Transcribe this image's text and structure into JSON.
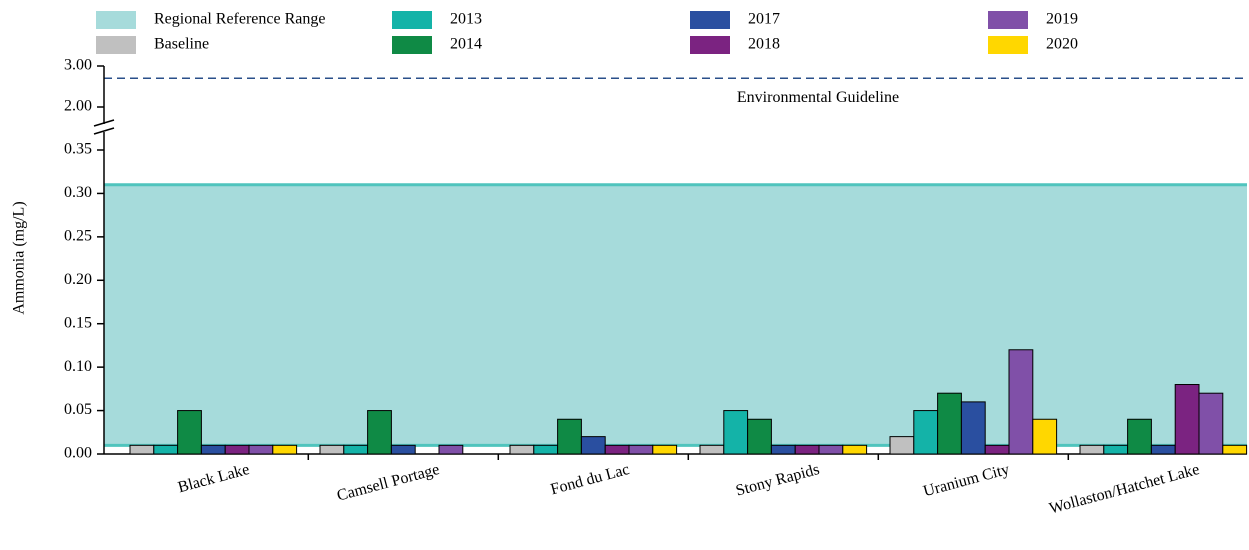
{
  "chart_data": {
    "type": "bar",
    "y_label": "Ammonia (mg/L)",
    "categories": [
      "Black Lake",
      "Camsell Portage",
      "Fond du Lac",
      "Stony Rapids",
      "Uranium City",
      "Wollaston/Hatchet Lake"
    ],
    "series": [
      {
        "name": "Baseline",
        "color": "#c0c0c0",
        "values": [
          0.01,
          0.01,
          0.01,
          0.01,
          0.02,
          0.01
        ]
      },
      {
        "name": "2013",
        "color": "#14b3a8",
        "values": [
          0.01,
          0.01,
          0.01,
          0.05,
          0.05,
          0.01
        ]
      },
      {
        "name": "2014",
        "color": "#0f8a45",
        "values": [
          0.05,
          0.05,
          0.04,
          0.04,
          0.07,
          0.04
        ]
      },
      {
        "name": "2017",
        "color": "#2a4fa0",
        "values": [
          0.01,
          0.01,
          0.02,
          0.01,
          0.06,
          0.01
        ]
      },
      {
        "name": "2018",
        "color": "#7b2381",
        "values": [
          0.01,
          null,
          0.01,
          0.01,
          0.01,
          0.08
        ]
      },
      {
        "name": "2019",
        "color": "#8050a8",
        "values": [
          0.01,
          0.01,
          0.01,
          0.01,
          0.12,
          0.07
        ]
      },
      {
        "name": "2020",
        "color": "#ffd700",
        "values": [
          0.01,
          null,
          0.01,
          0.01,
          0.04,
          0.01
        ]
      }
    ],
    "reference_range": {
      "name": "Regional Reference Range",
      "low": 0.01,
      "high": 0.31,
      "color": "#a6dbdb",
      "line_color": "#4fc4bd"
    },
    "guideline": {
      "label": "Environmental Guideline",
      "value": 2.7,
      "color": "#2a4f8a"
    },
    "ylim": [
      0,
      0.35
    ],
    "yticks": [
      {
        "value": 0,
        "label": "0.00"
      },
      {
        "value": 0.05,
        "label": "0.05"
      },
      {
        "value": 0.1,
        "label": "0.10"
      },
      {
        "value": 0.15,
        "label": "0.15"
      },
      {
        "value": 0.2,
        "label": "0.20"
      },
      {
        "value": 0.25,
        "label": "0.25"
      },
      {
        "value": 0.3,
        "label": "0.30"
      },
      {
        "value": 0.35,
        "label": "0.35"
      }
    ],
    "upper_ylim": [
      2,
      3
    ],
    "upper_yticks": [
      {
        "value": 2,
        "label": "2.00"
      },
      {
        "value": 3,
        "label": "3.00"
      }
    ]
  }
}
